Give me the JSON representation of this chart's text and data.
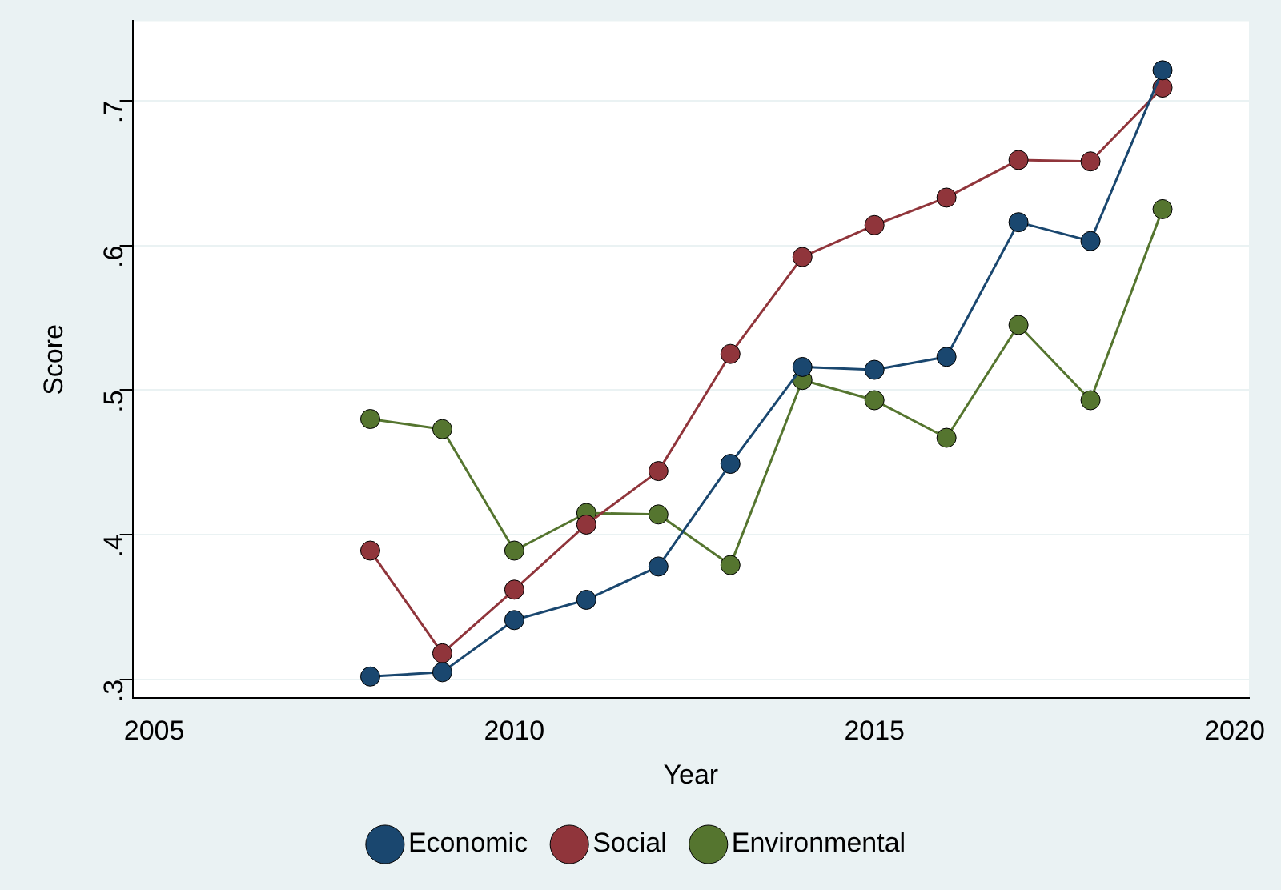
{
  "chart_data": {
    "type": "line",
    "xlabel": "Year",
    "ylabel": "Score",
    "x": [
      2008,
      2009,
      2010,
      2011,
      2012,
      2013,
      2014,
      2015,
      2016,
      2017,
      2018,
      2019
    ],
    "series": [
      {
        "name": "Economic",
        "color": "#1a476f",
        "values": [
          0.302,
          0.305,
          0.341,
          0.355,
          0.378,
          0.449,
          0.516,
          0.514,
          0.523,
          0.616,
          0.603,
          0.721
        ]
      },
      {
        "name": "Social",
        "color": "#90353b",
        "values": [
          0.389,
          0.318,
          0.362,
          0.407,
          0.444,
          0.525,
          0.592,
          0.614,
          0.633,
          0.659,
          0.658,
          0.709
        ]
      },
      {
        "name": "Environmental",
        "color": "#55752f",
        "values": [
          0.48,
          0.473,
          0.389,
          0.415,
          0.414,
          0.379,
          0.507,
          0.493,
          0.467,
          0.545,
          0.493,
          0.625
        ]
      }
    ],
    "xlim": [
      2004.7,
      2020.2
    ],
    "xticks": [
      2005,
      2010,
      2015,
      2020
    ],
    "ylim": [
      0.287,
      0.755
    ],
    "yticks": [
      {
        "value": 0.3,
        "label": ".3"
      },
      {
        "value": 0.4,
        "label": ".4"
      },
      {
        "value": 0.5,
        "label": ".5"
      },
      {
        "value": 0.6,
        "label": ".6"
      },
      {
        "value": 0.7,
        "label": ".7"
      }
    ],
    "grid": "y",
    "legend": "bottom",
    "marker": "circle",
    "line_style": "solid"
  }
}
